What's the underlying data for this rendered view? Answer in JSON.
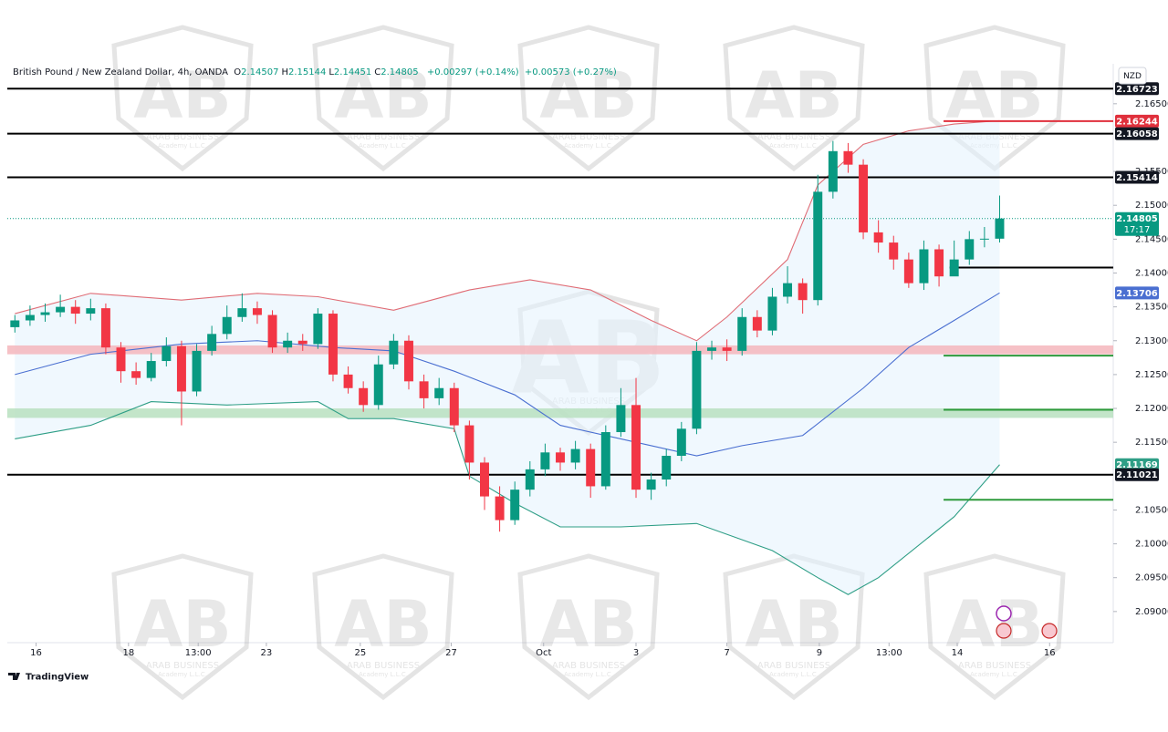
{
  "chart_data": {
    "type": "candlestick",
    "header": {
      "symbol": "British Pound / New Zealand Dollar, 4h, OANDA",
      "ohlc": [
        {
          "key": "O",
          "value": "2.14507"
        },
        {
          "key": "H",
          "value": "2.15144"
        },
        {
          "key": "L",
          "value": "2.14451"
        },
        {
          "key": "C",
          "value": "2.14805"
        }
      ],
      "change": "+0.00297 (+0.14%)",
      "change2": "+0.00573 (+0.27%)"
    },
    "currency": "NZD",
    "brand": "TradingView",
    "watermark": [
      "ARAB BUSINESS",
      "Academy L.L.C."
    ],
    "up_color": "#089981",
    "down_color": "#f23645",
    "xlim": [
      -0.5,
      72.5
    ],
    "ylim": [
      2.0854,
      2.1709
    ],
    "xticks": [
      {
        "value": 1.4,
        "label": "16"
      },
      {
        "value": 7.5,
        "label": "18"
      },
      {
        "value": 12.1,
        "label": "13:00"
      },
      {
        "value": 16.6,
        "label": "23"
      },
      {
        "value": 22.8,
        "label": "25"
      },
      {
        "value": 28.8,
        "label": "27"
      },
      {
        "value": 34.9,
        "label": "Oct"
      },
      {
        "value": 41.0,
        "label": "3"
      },
      {
        "value": 47.0,
        "label": "7"
      },
      {
        "value": 53.1,
        "label": "9"
      },
      {
        "value": 57.7,
        "label": "13:00"
      },
      {
        "value": 62.2,
        "label": "14"
      },
      {
        "value": 68.3,
        "label": "16"
      }
    ],
    "yticks": [
      {
        "value": 2.165,
        "label": "2.16500"
      },
      {
        "value": 2.155,
        "label": "2.15500"
      },
      {
        "value": 2.15,
        "label": "2.15000"
      },
      {
        "value": 2.145,
        "label": "2.14500"
      },
      {
        "value": 2.14,
        "label": "2.14000"
      },
      {
        "value": 2.135,
        "label": "2.13500"
      },
      {
        "value": 2.13,
        "label": "2.13000"
      },
      {
        "value": 2.125,
        "label": "2.12500"
      },
      {
        "value": 2.12,
        "label": "2.12000"
      },
      {
        "value": 2.115,
        "label": "2.11500"
      },
      {
        "value": 2.105,
        "label": "2.10500"
      },
      {
        "value": 2.1,
        "label": "2.10000"
      },
      {
        "value": 2.095,
        "label": "2.09500"
      },
      {
        "value": 2.09,
        "label": "2.09000"
      }
    ],
    "open": [
      2.132,
      2.133,
      2.1338,
      2.1342,
      2.135,
      2.134,
      2.1348,
      2.129,
      2.1255,
      2.1245,
      2.127,
      2.1292,
      2.1225,
      2.1285,
      2.131,
      2.1335,
      2.1348,
      2.1338,
      2.129,
      2.13,
      2.1295,
      2.134,
      2.125,
      2.123,
      2.1205,
      2.1265,
      2.13,
      2.124,
      2.1215,
      2.123,
      2.1175,
      2.112,
      2.107,
      2.1035,
      2.108,
      2.111,
      2.1135,
      2.112,
      2.114,
      2.1085,
      2.1165,
      2.1205,
      2.108,
      2.1095,
      2.113,
      2.117,
      2.1285,
      2.129,
      2.1285,
      2.1335,
      2.1315,
      2.1365,
      2.1385,
      2.136,
      2.152,
      2.158,
      2.156,
      2.146,
      2.1445,
      2.142,
      2.1385,
      2.1435,
      2.1395,
      2.142,
      2.145,
      2.14507
    ],
    "high": [
      2.1338,
      2.1352,
      2.1355,
      2.1368,
      2.136,
      2.1362,
      2.1355,
      2.1298,
      2.1268,
      2.1282,
      2.1305,
      2.13,
      2.1295,
      2.1322,
      2.1352,
      2.137,
      2.1358,
      2.1345,
      2.1312,
      2.131,
      2.1348,
      2.1345,
      2.1262,
      2.124,
      2.1278,
      2.131,
      2.1308,
      2.125,
      2.1245,
      2.1238,
      2.1182,
      2.1128,
      2.1085,
      2.1092,
      2.1122,
      2.1148,
      2.1142,
      2.1152,
      2.1148,
      2.1175,
      2.123,
      2.1245,
      2.1105,
      2.114,
      2.118,
      2.1298,
      2.13,
      2.1302,
      2.1348,
      2.1345,
      2.1378,
      2.141,
      2.1392,
      2.1545,
      2.1595,
      2.1592,
      2.1568,
      2.1478,
      2.1455,
      2.143,
      2.1448,
      2.1442,
      2.1448,
      2.1462,
      2.1468,
      2.15144
    ],
    "low": [
      2.1312,
      2.1322,
      2.1328,
      2.1335,
      2.1325,
      2.133,
      2.128,
      2.1238,
      2.1235,
      2.124,
      2.1262,
      2.1175,
      2.1218,
      2.1278,
      2.1302,
      2.1328,
      2.1325,
      2.1282,
      2.1282,
      2.1285,
      2.1288,
      2.124,
      2.1222,
      2.1195,
      2.1198,
      2.1258,
      2.1228,
      2.12,
      2.1205,
      2.1165,
      2.1095,
      2.105,
      2.1018,
      2.1028,
      2.107,
      2.11,
      2.1108,
      2.111,
      2.1068,
      2.108,
      2.1158,
      2.1068,
      2.1065,
      2.1085,
      2.1122,
      2.1162,
      2.1272,
      2.127,
      2.1278,
      2.1305,
      2.1308,
      2.1355,
      2.134,
      2.1352,
      2.151,
      2.1548,
      2.145,
      2.143,
      2.1405,
      2.1378,
      2.1375,
      2.138,
      2.14,
      2.1412,
      2.1438,
      2.14451
    ],
    "close": [
      2.133,
      2.1338,
      2.1342,
      2.135,
      2.134,
      2.1348,
      2.129,
      2.1255,
      2.1245,
      2.127,
      2.1292,
      2.1225,
      2.1285,
      2.131,
      2.1335,
      2.1348,
      2.1338,
      2.129,
      2.13,
      2.1295,
      2.134,
      2.125,
      2.123,
      2.1205,
      2.1265,
      2.13,
      2.124,
      2.1215,
      2.123,
      2.1175,
      2.112,
      2.107,
      2.1035,
      2.108,
      2.111,
      2.1135,
      2.112,
      2.114,
      2.1085,
      2.1165,
      2.1205,
      2.108,
      2.1095,
      2.113,
      2.117,
      2.1285,
      2.129,
      2.1285,
      2.1335,
      2.1315,
      2.1365,
      2.1385,
      2.136,
      2.152,
      2.158,
      2.156,
      2.146,
      2.1445,
      2.142,
      2.1385,
      2.1435,
      2.1395,
      2.142,
      2.145,
      2.14507,
      2.14805
    ],
    "bands": [
      {
        "color": "#e06c75",
        "x": [
          0,
          5,
          11,
          16,
          20,
          25,
          30,
          34,
          38,
          42,
          45,
          47,
          51,
          53,
          56,
          59,
          62,
          65
        ],
        "values": [
          2.134,
          2.137,
          2.136,
          2.137,
          2.1365,
          2.1345,
          2.1375,
          2.139,
          2.1375,
          2.133,
          2.13,
          2.1335,
          2.142,
          2.153,
          2.159,
          2.161,
          2.162,
          2.1625
        ]
      },
      {
        "color": "#4a6fd1",
        "x": [
          0,
          5,
          11,
          16,
          21,
          25,
          29,
          33,
          36,
          41,
          45,
          48,
          52,
          56,
          59,
          62,
          65
        ],
        "values": [
          2.125,
          2.128,
          2.1295,
          2.13,
          2.129,
          2.1285,
          2.1255,
          2.122,
          2.1175,
          2.115,
          2.113,
          2.1145,
          2.116,
          2.123,
          2.129,
          2.133,
          2.13706
        ]
      },
      {
        "color": "#2e9e86",
        "x": [
          0,
          5,
          9,
          14,
          20,
          22,
          25,
          29,
          30,
          33,
          36,
          40,
          45,
          50,
          53,
          55,
          57,
          62,
          65
        ],
        "values": [
          2.1155,
          2.1175,
          2.121,
          2.1205,
          2.121,
          2.1185,
          2.1185,
          2.117,
          2.11,
          2.106,
          2.1025,
          2.1025,
          2.103,
          2.099,
          2.095,
          2.0925,
          2.095,
          2.104,
          2.11169
        ]
      }
    ],
    "zones": [
      {
        "from": 2.128,
        "to": 2.1293,
        "color": "#f4b6bc"
      },
      {
        "from": 2.1186,
        "to": 2.12,
        "color": "#b9e0c0"
      }
    ],
    "levels": [
      {
        "value": 2.16723,
        "color": "#000000"
      },
      {
        "value": 2.16058,
        "color": "#000000"
      },
      {
        "value": 2.15414,
        "color": "#000000"
      },
      {
        "value": 2.11021,
        "color": "#000000"
      },
      {
        "value": 2.16244,
        "color": "#e0303c",
        "start": 61.3
      },
      {
        "value": 2.1408,
        "color": "#000000",
        "start": 61.7
      },
      {
        "value": 2.1278,
        "color": "#2e9a3c",
        "start": 61.3
      },
      {
        "value": 2.1198,
        "color": "#2e9a3c",
        "start": 61.3
      },
      {
        "value": 2.1065,
        "color": "#2e9a3c",
        "start": 61.3
      }
    ],
    "price_labels": [
      {
        "value": 2.16723,
        "color": "#131722"
      },
      {
        "value": 2.16244,
        "color": "#e0303c"
      },
      {
        "value": 2.16058,
        "color": "#131722"
      },
      {
        "value": 2.15414,
        "color": "#131722"
      },
      {
        "value": 2.13706,
        "color": "#4a6fd1"
      },
      {
        "value": 2.11169,
        "color": "#2e9e86"
      },
      {
        "value": 2.11021,
        "color": "#131722"
      }
    ],
    "last_price": {
      "value": 2.14805,
      "countdown": "17:17",
      "color": "#089981"
    }
  }
}
